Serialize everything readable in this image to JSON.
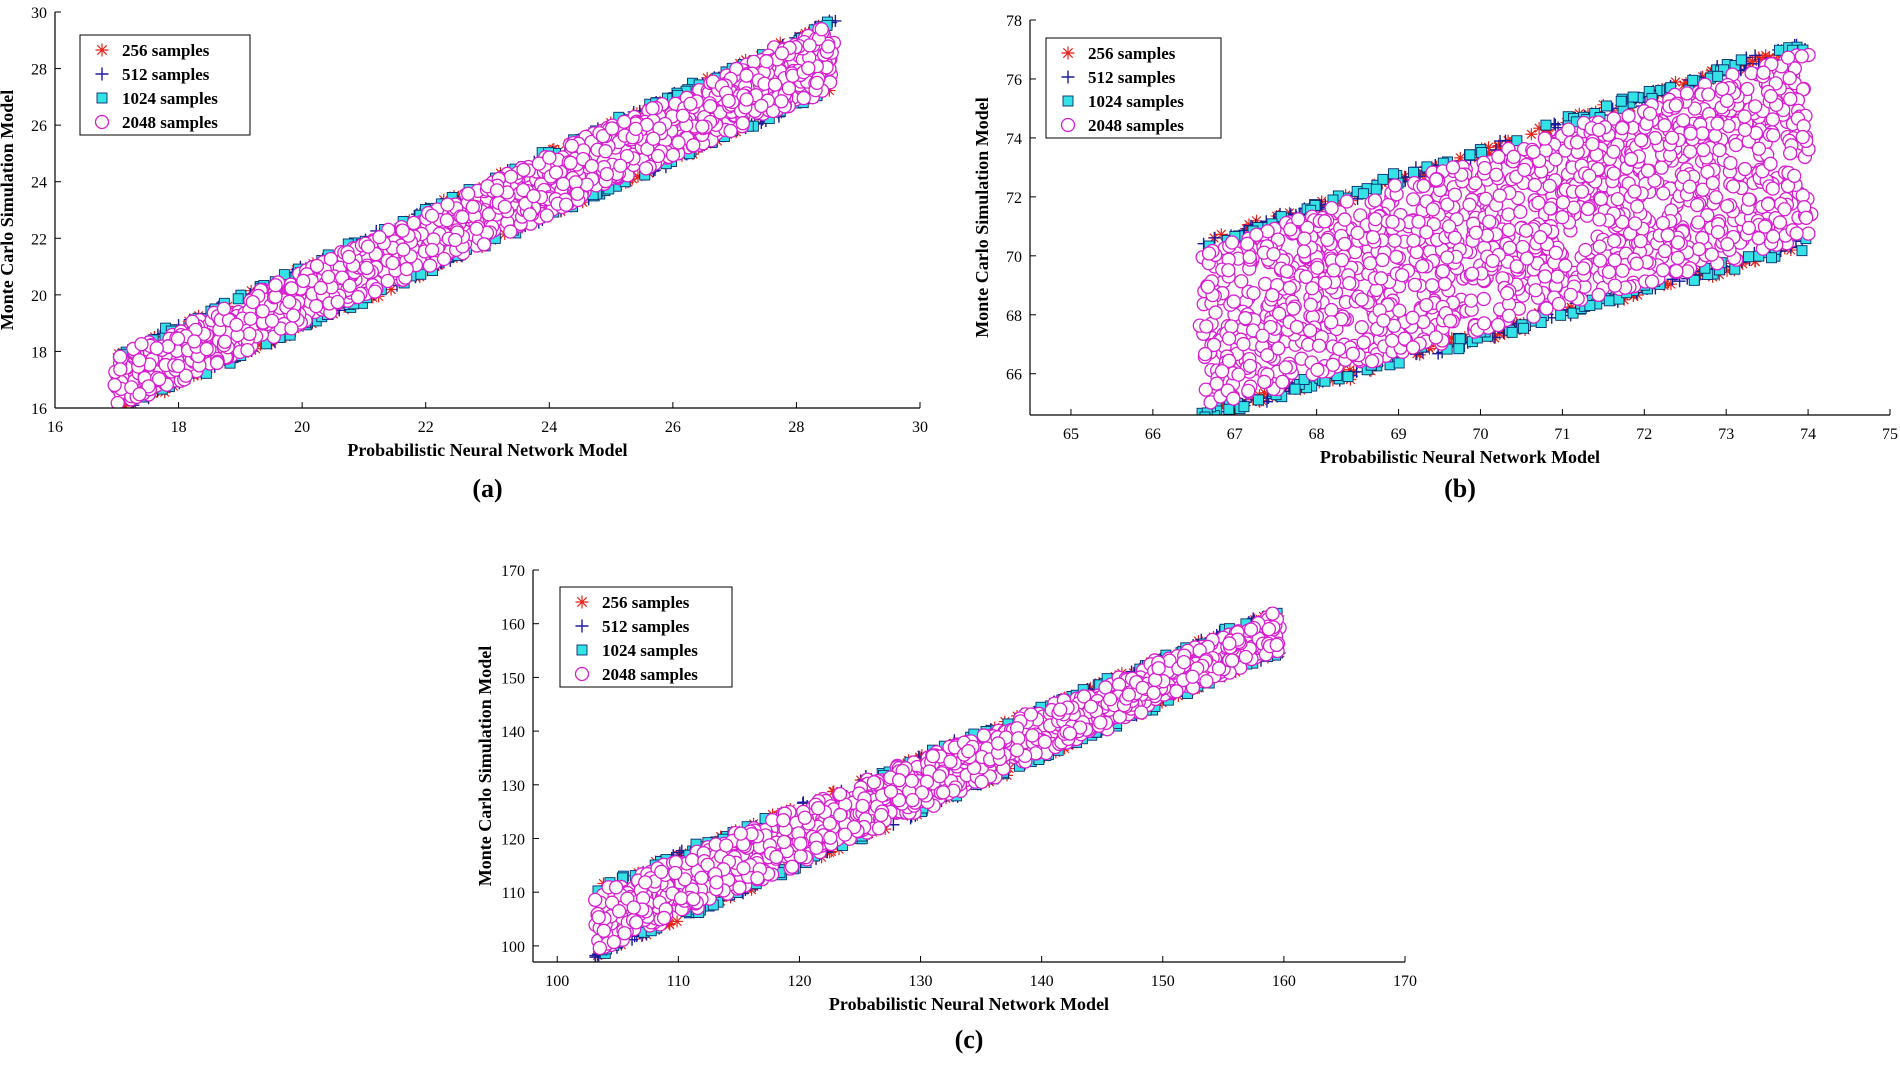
{
  "colors": {
    "s256": "#e8231a",
    "s512": "#1b1b9e",
    "s1024_fill": "#33e3e6",
    "s1024_stroke": "#0a2a6e",
    "s2048": "#d61fd0",
    "axis": "#000000"
  },
  "chart_data": [
    {
      "id": "a",
      "type": "scatter",
      "panel_label": "(a)",
      "xlabel": "Probabilistic Neural Network Model",
      "ylabel": "Monte Carlo Simulation Model",
      "xlim": [
        16,
        30
      ],
      "ylim": [
        16,
        30
      ],
      "xticks": [
        16,
        18,
        20,
        22,
        24,
        26,
        28,
        30
      ],
      "yticks": [
        16,
        18,
        20,
        22,
        24,
        26,
        28,
        30
      ],
      "legend_position": "top-left",
      "series": [
        {
          "name": "256 samples",
          "marker": "asterisk",
          "color_key": "s256"
        },
        {
          "name": "512 samples",
          "marker": "plus",
          "color_key": "s512"
        },
        {
          "name": "1024 samples",
          "marker": "square",
          "color_key": "s1024"
        },
        {
          "name": "2048 samples",
          "marker": "circle",
          "color_key": "s2048"
        }
      ],
      "band": {
        "x_start": 17.0,
        "x_end": 28.6,
        "lower_y_start": 16.0,
        "lower_y_end": 27.4,
        "upper_y_start": 17.8,
        "upper_y_end": 29.6,
        "n_points": 1400
      }
    },
    {
      "id": "b",
      "type": "scatter",
      "panel_label": "(b)",
      "xlabel": "Probabilistic Neural Network Model",
      "ylabel": "Monte Carlo Simulation Model",
      "xlim": [
        64.5,
        75
      ],
      "ylim": [
        64.6,
        78
      ],
      "xticks": [
        65,
        66,
        67,
        68,
        69,
        70,
        71,
        72,
        73,
        74,
        75
      ],
      "yticks": [
        66,
        68,
        70,
        72,
        74,
        76,
        78
      ],
      "legend_position": "top-left",
      "series": [
        {
          "name": "256 samples",
          "marker": "asterisk",
          "color_key": "s256"
        },
        {
          "name": "512 samples",
          "marker": "plus",
          "color_key": "s512"
        },
        {
          "name": "1024 samples",
          "marker": "square",
          "color_key": "s1024"
        },
        {
          "name": "2048 samples",
          "marker": "circle",
          "color_key": "s2048"
        }
      ],
      "band": {
        "x_start": 66.6,
        "x_end": 74.0,
        "lower_y_start": 64.8,
        "lower_y_end": 70.6,
        "upper_y_start": 70.2,
        "upper_y_end": 77.0,
        "n_points": 1500
      }
    },
    {
      "id": "c",
      "type": "scatter",
      "panel_label": "(c)",
      "xlabel": "Probabilistic Neural Network Model",
      "ylabel": "Monte Carlo Simulation Model",
      "xlim": [
        98,
        170
      ],
      "ylim": [
        97,
        170
      ],
      "xticks": [
        100,
        110,
        120,
        130,
        140,
        150,
        160,
        170
      ],
      "yticks": [
        100,
        110,
        120,
        130,
        140,
        150,
        160,
        170
      ],
      "legend_position": "top-left",
      "series": [
        {
          "name": "256 samples",
          "marker": "asterisk",
          "color_key": "s256"
        },
        {
          "name": "512 samples",
          "marker": "plus",
          "color_key": "s512"
        },
        {
          "name": "1024 samples",
          "marker": "square",
          "color_key": "s1024"
        },
        {
          "name": "2048 samples",
          "marker": "circle",
          "color_key": "s2048"
        }
      ],
      "band": {
        "x_start": 103.0,
        "x_end": 159.5,
        "lower_y_start": 98.5,
        "lower_y_end": 155.0,
        "upper_y_start": 110.0,
        "upper_y_end": 162.0,
        "n_points": 1300
      }
    }
  ]
}
